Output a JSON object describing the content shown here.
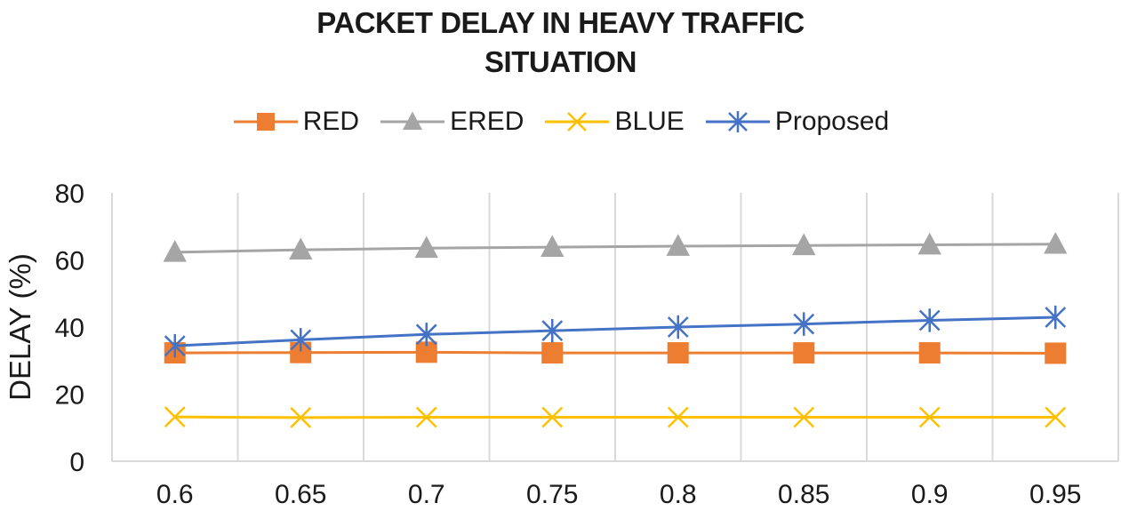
{
  "chart_data": {
    "type": "line",
    "title": "PACKET DELAY IN HEAVY TRAFFIC SITUATION",
    "title_lines": [
      "PACKET DELAY IN HEAVY TRAFFIC",
      "SITUATION"
    ],
    "xlabel": "",
    "ylabel": "DELAY (%)",
    "ylim": [
      0,
      80
    ],
    "yticks": [
      0,
      20,
      40,
      60,
      80
    ],
    "categories": [
      "0.6",
      "0.65",
      "0.7",
      "0.75",
      "0.8",
      "0.85",
      "0.9",
      "0.95"
    ],
    "grid": "vertical",
    "legend_position": "top",
    "series": [
      {
        "name": "RED",
        "color": "#ED7D31",
        "marker": "square",
        "values": [
          32.3,
          32.4,
          32.5,
          32.3,
          32.3,
          32.3,
          32.3,
          32.2
        ]
      },
      {
        "name": "ERED",
        "color": "#A5A5A5",
        "marker": "triangle",
        "values": [
          62.3,
          63.0,
          63.5,
          63.8,
          64.1,
          64.3,
          64.5,
          64.7
        ]
      },
      {
        "name": "BLUE",
        "color": "#FFC000",
        "marker": "x",
        "values": [
          13.2,
          13.0,
          13.1,
          13.1,
          13.1,
          13.1,
          13.1,
          13.1
        ]
      },
      {
        "name": "Proposed",
        "color": "#4472C4",
        "marker": "asterisk",
        "values": [
          34.4,
          36.2,
          37.8,
          38.9,
          40.0,
          40.9,
          42.0,
          42.9
        ]
      }
    ]
  }
}
